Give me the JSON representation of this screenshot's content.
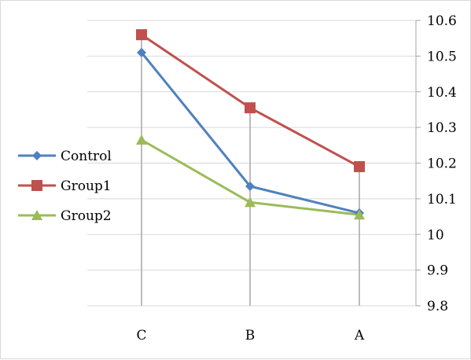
{
  "chart_data": {
    "type": "line",
    "categories": [
      "C",
      "B",
      "A"
    ],
    "series": [
      {
        "name": "Control",
        "values": [
          10.51,
          10.135,
          10.06
        ],
        "color": "#4f81bd",
        "marker": "diamond"
      },
      {
        "name": "Group1",
        "values": [
          10.56,
          10.355,
          10.19
        ],
        "color": "#c0504d",
        "marker": "square"
      },
      {
        "name": "Group2",
        "values": [
          10.265,
          10.09,
          10.055
        ],
        "color": "#9bbb59",
        "marker": "triangle"
      }
    ],
    "ylim": [
      9.8,
      10.6
    ],
    "yticks": [
      "9.8",
      "9.9",
      "10",
      "10.1",
      "10.2",
      "10.3",
      "10.4",
      "10.5",
      "10.6"
    ],
    "y_axis_position": "right",
    "grid": true,
    "drop_lines": true,
    "legend_position": "left",
    "title": "",
    "xlabel": "",
    "ylabel": ""
  }
}
